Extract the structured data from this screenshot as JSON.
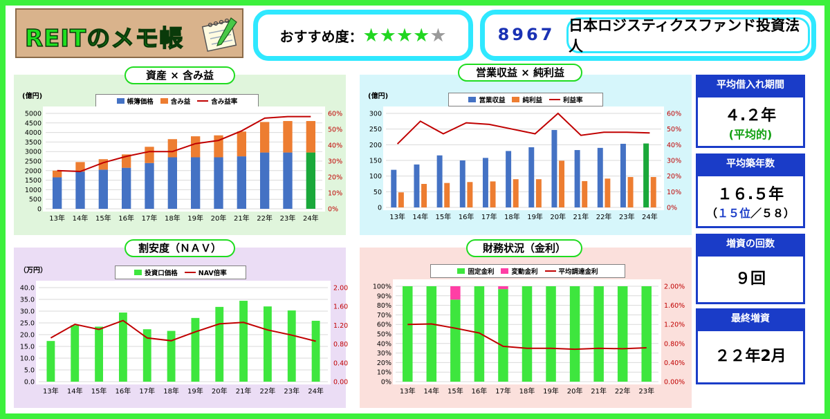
{
  "header": {
    "logo_title": "REITのメモ帳",
    "rating_label": "おすすめ度：",
    "rating_stars": 4,
    "rating_max": 5,
    "code": "8967",
    "name": "日本ロジスティクスファンド投資法人"
  },
  "colors": {
    "book": "#4472c4",
    "gain": "#ed7d31",
    "line": "#c00000",
    "highlight": "#1aa83a",
    "green_bar": "#3ee63e",
    "pink": "#ff3ea5",
    "stat_blue": "#1a3cc8"
  },
  "stats": {
    "borrow_label": "平均借入れ期間",
    "borrow_value": "４.２年",
    "borrow_note": "(平均的)",
    "age_label": "平均築年数",
    "age_value": "１６.５年",
    "age_note_open": "（",
    "age_note_rank": "１５位",
    "age_note_close": "／５８）",
    "capital_label": "増資の回数",
    "capital_value": "９回",
    "last_label": "最終増資",
    "last_value": "２２年2月"
  },
  "chart_data": [
    {
      "id": "assets",
      "type": "bar",
      "title": "資産 × 含み益",
      "unit": "(億円)",
      "stacked": true,
      "categories": [
        "13年",
        "14年",
        "15年",
        "16年",
        "17年",
        "18年",
        "19年",
        "20年",
        "21年",
        "22年",
        "23年",
        "24年"
      ],
      "series": [
        {
          "name": "帳簿価格",
          "values": [
            1650,
            1950,
            2050,
            2150,
            2400,
            2700,
            2700,
            2700,
            2750,
            2950,
            2950,
            2950
          ]
        },
        {
          "name": "含み益",
          "values": [
            350,
            500,
            550,
            700,
            850,
            950,
            1100,
            1150,
            1300,
            1600,
            1650,
            1650
          ]
        },
        {
          "name": "含み益率",
          "axis": "right",
          "values": [
            24,
            23.5,
            29,
            33,
            36,
            36,
            41,
            43,
            49,
            57,
            58,
            58
          ]
        }
      ],
      "ylim": [
        0,
        5000
      ],
      "y_ticks": [
        "0",
        "500",
        "1000",
        "1500",
        "2000",
        "2500",
        "3000",
        "3500",
        "4000",
        "4500",
        "5000"
      ],
      "y2lim": [
        0,
        60
      ],
      "y2_ticks": [
        "0%",
        "10%",
        "20%",
        "30%",
        "40%",
        "50%",
        "60%"
      ],
      "grid": true,
      "legend": "top"
    },
    {
      "id": "revenue",
      "type": "bar",
      "title": "営業収益 × 純利益",
      "unit": "(億円)",
      "categories": [
        "13年",
        "14年",
        "15年",
        "16年",
        "17年",
        "18年",
        "19年",
        "20年",
        "21年",
        "22年",
        "23年",
        "24年"
      ],
      "series": [
        {
          "name": "営業収益",
          "values": [
            120,
            137,
            166,
            150,
            158,
            180,
            192,
            247,
            183,
            190,
            203,
            204
          ]
        },
        {
          "name": "純利益",
          "values": [
            48,
            75,
            78,
            81,
            83,
            90,
            90,
            149,
            84,
            92,
            97,
            97
          ]
        },
        {
          "name": "利益率",
          "axis": "right",
          "values": [
            40.5,
            55,
            47,
            54,
            53,
            50,
            47,
            60,
            46,
            48,
            48,
            47.5
          ]
        }
      ],
      "ylim": [
        0,
        300
      ],
      "y_ticks": [
        "0",
        "50",
        "100",
        "150",
        "200",
        "250",
        "300"
      ],
      "y2lim": [
        0,
        60
      ],
      "y2_ticks": [
        "0%",
        "10%",
        "20%",
        "30%",
        "40%",
        "50%",
        "60%"
      ],
      "grid": true,
      "legend": "top"
    },
    {
      "id": "nav",
      "type": "bar",
      "title": "割安度（ＮＡＶ）",
      "unit": "（万円）",
      "categories": [
        "13年",
        "14年",
        "15年",
        "16年",
        "17年",
        "18年",
        "19年",
        "20年",
        "21年",
        "22年",
        "23年",
        "24年"
      ],
      "series": [
        {
          "name": "投資口価格",
          "values": [
            17.3,
            24,
            23.4,
            29.4,
            22.3,
            21.6,
            27.1,
            31.8,
            34.4,
            32,
            30.3,
            25.9
          ]
        },
        {
          "name": "NAV倍率",
          "axis": "right",
          "values": [
            0.93,
            1.22,
            1.11,
            1.3,
            0.93,
            0.87,
            1.06,
            1.23,
            1.26,
            1.1,
            0.99,
            0.86
          ]
        }
      ],
      "ylim": [
        0,
        40
      ],
      "y_ticks": [
        "0.0",
        "5.0",
        "10.0",
        "15.0",
        "20.0",
        "25.0",
        "30.0",
        "35.0",
        "40.0"
      ],
      "y2lim": [
        0,
        2
      ],
      "y2_ticks": [
        "0.00",
        "0.40",
        "0.80",
        "1.20",
        "1.60",
        "2.00"
      ],
      "grid": true,
      "legend": "top"
    },
    {
      "id": "finance",
      "type": "bar",
      "title": "財務状況（金利）",
      "stacked": true,
      "categories": [
        "13年",
        "14年",
        "15年",
        "16年",
        "17年",
        "18年",
        "19年",
        "20年",
        "21年",
        "22年",
        "23年"
      ],
      "series": [
        {
          "name": "固定金利",
          "values": [
            100,
            100,
            86,
            100,
            97,
            100,
            100,
            100,
            100,
            100,
            100
          ]
        },
        {
          "name": "変動金利",
          "values": [
            0,
            0,
            14,
            0,
            3,
            0,
            0,
            0,
            0,
            0,
            0
          ]
        },
        {
          "name": "平均調達金利",
          "axis": "right",
          "values": [
            1.2,
            1.21,
            1.12,
            1.02,
            0.74,
            0.7,
            0.7,
            0.68,
            0.7,
            0.69,
            0.71
          ]
        }
      ],
      "ylim": [
        0,
        100
      ],
      "y_ticks": [
        "0%",
        "10%",
        "20%",
        "30%",
        "40%",
        "50%",
        "60%",
        "70%",
        "80%",
        "90%",
        "100%"
      ],
      "y2lim": [
        0,
        2
      ],
      "y2_ticks": [
        "0.00%",
        "0.40%",
        "0.80%",
        "1.20%",
        "1.60%",
        "2.00%"
      ],
      "grid": true,
      "legend": "top"
    }
  ]
}
